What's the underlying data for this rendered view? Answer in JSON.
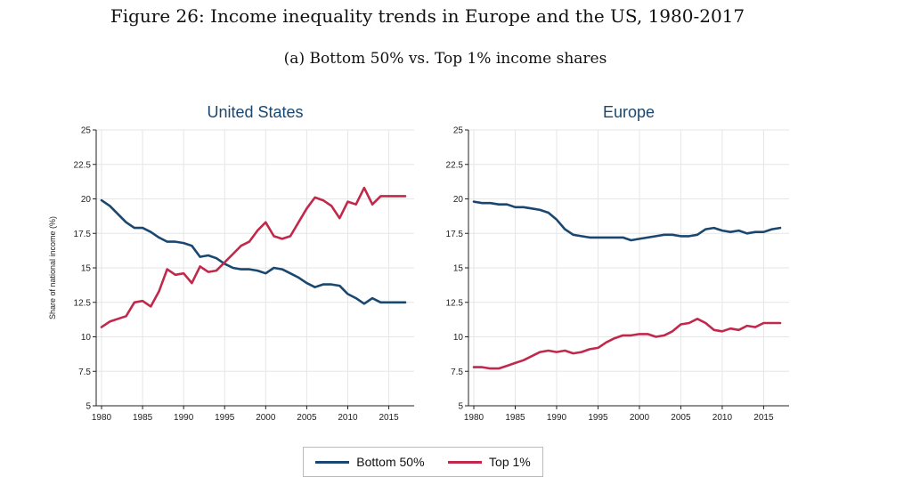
{
  "figure": {
    "title": "Figure 26: Income inequality trends in Europe and the US, 1980-2017",
    "subtitle": "(a) Bottom 50% vs. Top 1% income shares"
  },
  "legend": {
    "items": [
      {
        "label": "Bottom 50%",
        "color": "#1a476f"
      },
      {
        "label": "Top 1%",
        "color": "#c0294b"
      }
    ],
    "placement": "bottom-center"
  },
  "chart_data": [
    {
      "type": "line",
      "title": "United States",
      "ylabel": "Share of national income (%)",
      "xlabel": "",
      "xlim": [
        1980,
        2017
      ],
      "ylim": [
        5,
        25
      ],
      "xticks": [
        "1980",
        "1985",
        "1990",
        "1995",
        "2000",
        "2005",
        "2010",
        "2015"
      ],
      "yticks": [
        "5",
        "7.5",
        "10",
        "12.5",
        "15",
        "17.5",
        "20",
        "22.5",
        "25"
      ],
      "grid": true,
      "x": [
        1980,
        1981,
        1982,
        1983,
        1984,
        1985,
        1986,
        1987,
        1988,
        1989,
        1990,
        1991,
        1992,
        1993,
        1994,
        1995,
        1996,
        1997,
        1998,
        1999,
        2000,
        2001,
        2002,
        2003,
        2004,
        2005,
        2006,
        2007,
        2008,
        2009,
        2010,
        2011,
        2012,
        2013,
        2014,
        2015,
        2016,
        2017
      ],
      "series": [
        {
          "name": "Bottom 50%",
          "color": "#1a476f",
          "values": [
            19.9,
            19.5,
            18.9,
            18.3,
            17.9,
            17.9,
            17.6,
            17.2,
            16.9,
            16.9,
            16.8,
            16.6,
            15.8,
            15.9,
            15.7,
            15.3,
            15.0,
            14.9,
            14.9,
            14.8,
            14.6,
            15.0,
            14.9,
            14.6,
            14.3,
            13.9,
            13.6,
            13.8,
            13.8,
            13.7,
            13.1,
            12.8,
            12.4,
            12.8,
            12.5,
            12.5,
            12.5,
            12.5
          ]
        },
        {
          "name": "Top 1%",
          "color": "#c0294b",
          "values": [
            10.7,
            11.1,
            11.3,
            11.5,
            12.5,
            12.6,
            12.2,
            13.3,
            14.9,
            14.5,
            14.6,
            13.9,
            15.1,
            14.7,
            14.8,
            15.4,
            16.0,
            16.6,
            16.9,
            17.7,
            18.3,
            17.3,
            17.1,
            17.3,
            18.3,
            19.3,
            20.1,
            19.9,
            19.5,
            18.6,
            19.8,
            19.6,
            20.8,
            19.6,
            20.2,
            20.2,
            20.2,
            20.2
          ]
        }
      ]
    },
    {
      "type": "line",
      "title": "Europe",
      "ylabel": "",
      "xlabel": "",
      "xlim": [
        1980,
        2017
      ],
      "ylim": [
        5,
        25
      ],
      "xticks": [
        "1980",
        "1985",
        "1990",
        "1995",
        "2000",
        "2005",
        "2010",
        "2015"
      ],
      "yticks": [
        "5",
        "7.5",
        "10",
        "12.5",
        "15",
        "17.5",
        "20",
        "22.5",
        "25"
      ],
      "grid": true,
      "x": [
        1980,
        1981,
        1982,
        1983,
        1984,
        1985,
        1986,
        1987,
        1988,
        1989,
        1990,
        1991,
        1992,
        1993,
        1994,
        1995,
        1996,
        1997,
        1998,
        1999,
        2000,
        2001,
        2002,
        2003,
        2004,
        2005,
        2006,
        2007,
        2008,
        2009,
        2010,
        2011,
        2012,
        2013,
        2014,
        2015,
        2016,
        2017
      ],
      "series": [
        {
          "name": "Bottom 50%",
          "color": "#1a476f",
          "values": [
            19.8,
            19.7,
            19.7,
            19.6,
            19.6,
            19.4,
            19.4,
            19.3,
            19.2,
            19.0,
            18.5,
            17.8,
            17.4,
            17.3,
            17.2,
            17.2,
            17.2,
            17.2,
            17.2,
            17.0,
            17.1,
            17.2,
            17.3,
            17.4,
            17.4,
            17.3,
            17.3,
            17.4,
            17.8,
            17.9,
            17.7,
            17.6,
            17.7,
            17.5,
            17.6,
            17.6,
            17.8,
            17.9
          ]
        },
        {
          "name": "Top 1%",
          "color": "#c0294b",
          "values": [
            7.8,
            7.8,
            7.7,
            7.7,
            7.9,
            8.1,
            8.3,
            8.6,
            8.9,
            9.0,
            8.9,
            9.0,
            8.8,
            8.9,
            9.1,
            9.2,
            9.6,
            9.9,
            10.1,
            10.1,
            10.2,
            10.2,
            10.0,
            10.1,
            10.4,
            10.9,
            11.0,
            11.3,
            11.0,
            10.5,
            10.4,
            10.6,
            10.5,
            10.8,
            10.7,
            11.0,
            11.0,
            11.0
          ]
        }
      ]
    }
  ]
}
